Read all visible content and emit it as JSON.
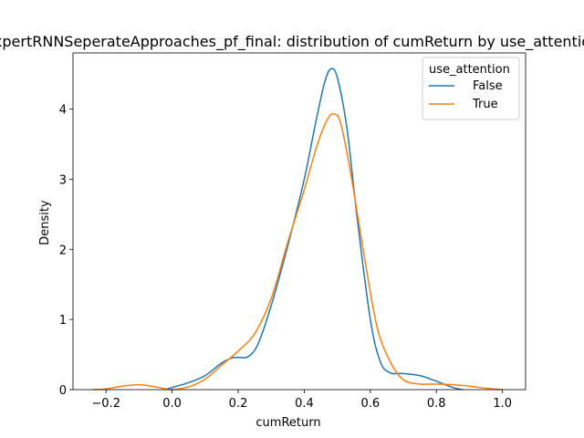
{
  "chart_data": {
    "type": "line",
    "title": "ExpertRNNSeperateApproaches_pf_final: distribution of cumReturn by use_attention",
    "xlabel": "cumReturn",
    "ylabel": "Density",
    "xlim": [
      -0.3,
      1.07
    ],
    "ylim": [
      0,
      4.8
    ],
    "xticks": [
      -0.2,
      0.0,
      0.2,
      0.4,
      0.6,
      0.8,
      1.0
    ],
    "xtick_labels": [
      "−0.2",
      "0.0",
      "0.2",
      "0.4",
      "0.6",
      "0.8",
      "1.0"
    ],
    "yticks": [
      0,
      1,
      2,
      3,
      4
    ],
    "ytick_labels": [
      "0",
      "1",
      "2",
      "3",
      "4"
    ],
    "grid": false,
    "legend": {
      "title": "use_attention",
      "placement": "top-right"
    },
    "series": [
      {
        "name": "False",
        "color": "#1f77b4",
        "x": [
          -0.02,
          0.0,
          0.05,
          0.1,
          0.15,
          0.18,
          0.2,
          0.23,
          0.26,
          0.3,
          0.35,
          0.4,
          0.43,
          0.46,
          0.48,
          0.5,
          0.53,
          0.56,
          0.6,
          0.63,
          0.66,
          0.7,
          0.75,
          0.8,
          0.85,
          0.88
        ],
        "y": [
          0.0,
          0.03,
          0.1,
          0.2,
          0.38,
          0.45,
          0.46,
          0.47,
          0.65,
          1.2,
          2.05,
          3.0,
          3.7,
          4.35,
          4.57,
          4.45,
          3.7,
          2.45,
          1.0,
          0.4,
          0.24,
          0.23,
          0.2,
          0.12,
          0.03,
          0.0
        ]
      },
      {
        "name": "True",
        "color": "#ff7f0e",
        "x": [
          -0.24,
          -0.2,
          -0.15,
          -0.1,
          -0.05,
          -0.02,
          0.0,
          0.05,
          0.1,
          0.15,
          0.2,
          0.25,
          0.3,
          0.35,
          0.4,
          0.44,
          0.47,
          0.49,
          0.51,
          0.54,
          0.58,
          0.62,
          0.66,
          0.7,
          0.75,
          0.8,
          0.85,
          0.9,
          0.95,
          1.0
        ],
        "y": [
          0.0,
          0.01,
          0.05,
          0.07,
          0.04,
          0.01,
          0.0,
          0.04,
          0.15,
          0.35,
          0.55,
          0.8,
          1.3,
          2.1,
          2.85,
          3.5,
          3.85,
          3.93,
          3.8,
          3.1,
          1.95,
          0.9,
          0.4,
          0.14,
          0.08,
          0.08,
          0.07,
          0.05,
          0.02,
          0.0
        ]
      }
    ]
  }
}
